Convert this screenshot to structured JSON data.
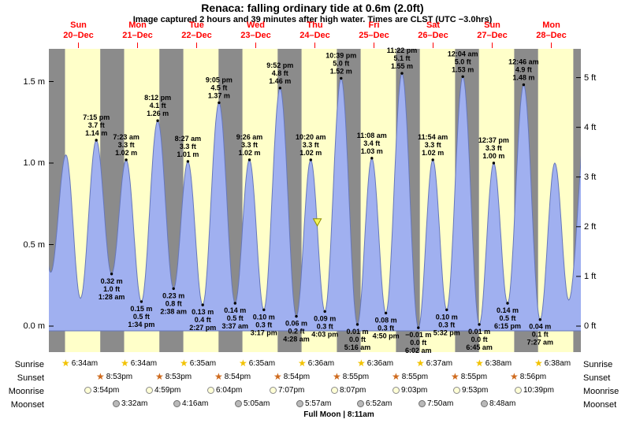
{
  "title": "Renaca: falling  ordinary tide at 0.6m (2.0ft)",
  "subtitle": "Image captured 2 hours and 39 minutes after high water. Times are CLST (UTC −3.0hrs)",
  "colors": {
    "night": "#8b8b8b",
    "day": "#ffffc9",
    "tide_fill": "#a0b0f0",
    "tide_stroke": "#6677bb",
    "date_text": "#ff0000",
    "marker_fill": "#f5f55a",
    "marker_stroke": "#8f8f00",
    "sunrise_star": "#f2c200",
    "sunset_star": "#cf6a1d",
    "moonrise_fill": "#ffffd6",
    "moonrise_border": "#8a8a8a",
    "moonset_fill": "#b9b9b9",
    "moonset_border": "#6e6e6e"
  },
  "chart_data": {
    "type": "area",
    "title": "Tide height at Renaca, Dec 20 - Dec 28",
    "total_hours": 216,
    "days": [
      {
        "name": "Sun",
        "date": "20–Dec"
      },
      {
        "name": "Mon",
        "date": "21–Dec"
      },
      {
        "name": "Tue",
        "date": "22–Dec"
      },
      {
        "name": "Wed",
        "date": "23–Dec"
      },
      {
        "name": "Thu",
        "date": "24–Dec"
      },
      {
        "name": "Fri",
        "date": "25–Dec"
      },
      {
        "name": "Sat",
        "date": "26–Dec"
      },
      {
        "name": "Sun",
        "date": "27–Dec"
      },
      {
        "name": "Mon",
        "date": "28–Dec"
      }
    ],
    "y_axis_left": {
      "unit": "m",
      "ticks": [
        0,
        0.5,
        1,
        1.5
      ]
    },
    "y_axis_right": {
      "unit": "ft",
      "ticks": [
        0,
        1,
        2,
        3,
        4,
        5
      ]
    },
    "ylim_m": [
      -0.17,
      1.7
    ],
    "day_night": [
      {
        "sunrise": 6.57,
        "sunset": 20.88
      },
      {
        "sunrise": 6.57,
        "sunset": 20.88
      },
      {
        "sunrise": 6.58,
        "sunset": 20.9
      },
      {
        "sunrise": 6.58,
        "sunset": 20.9
      },
      {
        "sunrise": 6.6,
        "sunset": 20.92
      },
      {
        "sunrise": 6.6,
        "sunset": 20.92
      },
      {
        "sunrise": 6.62,
        "sunset": 20.92
      },
      {
        "sunrise": 6.63,
        "sunset": 20.93
      },
      {
        "sunrise": 6.63,
        "sunset": 20.93
      }
    ],
    "tide_extremes": [
      {
        "t_hours": -5.33,
        "height_m": 1.1,
        "type": "high",
        "label_lines": null
      },
      {
        "t_hours": 0.75,
        "height_m": 0.33,
        "type": "low",
        "label_lines": null
      },
      {
        "t_hours": 6.92,
        "height_m": 1.05,
        "type": "high",
        "label_lines": null
      },
      {
        "t_hours": 12.83,
        "height_m": 0.17,
        "type": "low",
        "label_lines": null
      },
      {
        "t_hours": 19.25,
        "height_m": 1.14,
        "type": "high",
        "label_lines": [
          "7:15 pm",
          "3.7 ft",
          "1.14 m"
        ]
      },
      {
        "t_hours": 25.47,
        "height_m": 0.32,
        "type": "low",
        "label_lines": [
          "0.32 m",
          "1.0 ft",
          "1:28 am"
        ]
      },
      {
        "t_hours": 31.38,
        "height_m": 1.02,
        "type": "high",
        "label_lines": [
          "7:23 am",
          "3.3 ft",
          "1.02 m"
        ]
      },
      {
        "t_hours": 37.57,
        "height_m": 0.15,
        "type": "low",
        "label_lines": [
          "0.15 m",
          "0.5 ft",
          "1:34 pm"
        ]
      },
      {
        "t_hours": 44.2,
        "height_m": 1.26,
        "type": "high",
        "label_lines": [
          "8:12 pm",
          "4.1 ft",
          "1.26 m"
        ]
      },
      {
        "t_hours": 50.63,
        "height_m": 0.23,
        "type": "low",
        "label_lines": [
          "0.23 m",
          "0.8 ft",
          "2:38 am"
        ]
      },
      {
        "t_hours": 56.45,
        "height_m": 1.01,
        "type": "high",
        "label_lines": [
          "8:27 am",
          "3.3 ft",
          "1.01 m"
        ]
      },
      {
        "t_hours": 62.45,
        "height_m": 0.13,
        "type": "low",
        "label_lines": [
          "0.13 m",
          "0.4 ft",
          "2:27 pm"
        ]
      },
      {
        "t_hours": 69.08,
        "height_m": 1.37,
        "type": "high",
        "label_lines": [
          "9:05 pm",
          "4.5 ft",
          "1.37 m"
        ]
      },
      {
        "t_hours": 75.62,
        "height_m": 0.14,
        "type": "low",
        "label_lines": [
          "0.14 m",
          "0.5 ft",
          "3:37 am"
        ]
      },
      {
        "t_hours": 81.43,
        "height_m": 1.02,
        "type": "high",
        "label_lines": [
          "9:26 am",
          "3.3 ft",
          "1.02 m"
        ]
      },
      {
        "t_hours": 87.28,
        "height_m": 0.1,
        "type": "low",
        "label_lines": [
          "0.10 m",
          "0.3 ft",
          "3:17 pm"
        ]
      },
      {
        "t_hours": 93.87,
        "height_m": 1.46,
        "type": "high",
        "label_lines": [
          "9:52 pm",
          "4.8 ft",
          "1.46 m"
        ]
      },
      {
        "t_hours": 100.47,
        "height_m": 0.06,
        "type": "low",
        "label_lines": [
          "0.06 m",
          "0.2 ft",
          "4:28 am"
        ]
      },
      {
        "t_hours": 106.33,
        "height_m": 1.02,
        "type": "high",
        "label_lines": [
          "10:20 am",
          "3.3 ft",
          "1.02 m"
        ]
      },
      {
        "t_hours": 112.05,
        "height_m": 0.09,
        "type": "low",
        "label_lines": [
          "0.09 m",
          "0.3 ft",
          "4:03 pm"
        ]
      },
      {
        "t_hours": 118.65,
        "height_m": 1.52,
        "type": "high",
        "label_lines": [
          "10:39 pm",
          "5.0 ft",
          "1.52 m"
        ]
      },
      {
        "t_hours": 125.27,
        "height_m": 0.01,
        "type": "low",
        "label_lines": [
          "0.01 m",
          "0.0 ft",
          "5:16 am"
        ]
      },
      {
        "t_hours": 131.13,
        "height_m": 1.03,
        "type": "high",
        "label_lines": [
          "11:08 am",
          "3.4 ft",
          "1.03 m"
        ]
      },
      {
        "t_hours": 136.83,
        "height_m": 0.08,
        "type": "low",
        "label_lines": [
          "0.08 m",
          "0.3 ft",
          "4:50 pm"
        ]
      },
      {
        "t_hours": 143.37,
        "height_m": 1.55,
        "type": "high",
        "label_lines": [
          "11:22 pm",
          "5.1 ft",
          "1.55 m"
        ]
      },
      {
        "t_hours": 150.03,
        "height_m": -0.01,
        "type": "low",
        "label_lines": [
          "−0.01 m",
          "0.0 ft",
          "6:02 am"
        ]
      },
      {
        "t_hours": 155.9,
        "height_m": 1.02,
        "type": "high",
        "label_lines": [
          "11:54 am",
          "3.3 ft",
          "1.02 m"
        ]
      },
      {
        "t_hours": 161.53,
        "height_m": 0.1,
        "type": "low",
        "label_lines": [
          "0.10 m",
          "0.3 ft",
          "5:32 pm"
        ]
      },
      {
        "t_hours": 168.07,
        "height_m": 1.53,
        "type": "high",
        "label_lines": [
          "12:04 am",
          "5.0 ft",
          "1.53 m"
        ]
      },
      {
        "t_hours": 174.75,
        "height_m": 0.01,
        "type": "low",
        "label_lines": [
          "0.01 m",
          "0.0 ft",
          "6:45 am"
        ]
      },
      {
        "t_hours": 180.62,
        "height_m": 1.0,
        "type": "high",
        "label_lines": [
          "12:37 pm",
          "3.3 ft",
          "1.00 m"
        ]
      },
      {
        "t_hours": 186.25,
        "height_m": 0.14,
        "type": "low",
        "label_lines": [
          "0.14 m",
          "0.5 ft",
          "6:15 pm"
        ]
      },
      {
        "t_hours": 192.77,
        "height_m": 1.48,
        "type": "high",
        "label_lines": [
          "12:46 am",
          "4.9 ft",
          "1.48 m"
        ]
      },
      {
        "t_hours": 199.45,
        "height_m": 0.04,
        "type": "low",
        "label_lines": [
          "0.04 m",
          "0.1 ft",
          "7:27 am"
        ]
      },
      {
        "t_hours": 205.42,
        "height_m": 1.0,
        "type": "high",
        "label_lines": null
      },
      {
        "t_hours": 211.08,
        "height_m": 0.16,
        "type": "low",
        "label_lines": null
      },
      {
        "t_hours": 218.5,
        "height_m": 1.3,
        "type": "high",
        "label_lines": null
      }
    ],
    "current_marker": {
      "t_hours": 108.98,
      "height_m": 0.61
    }
  },
  "astro": {
    "rows": [
      {
        "label": "Sunrise",
        "icon": "sunrise",
        "events": [
          {
            "day": 0,
            "hour": 6.57,
            "time": "6:34am"
          },
          {
            "day": 1,
            "hour": 6.57,
            "time": "6:34am"
          },
          {
            "day": 2,
            "hour": 6.58,
            "time": "6:35am"
          },
          {
            "day": 3,
            "hour": 6.58,
            "time": "6:35am"
          },
          {
            "day": 4,
            "hour": 6.6,
            "time": "6:36am"
          },
          {
            "day": 5,
            "hour": 6.6,
            "time": "6:36am"
          },
          {
            "day": 6,
            "hour": 6.62,
            "time": "6:37am"
          },
          {
            "day": 7,
            "hour": 6.63,
            "time": "6:38am"
          },
          {
            "day": 8,
            "hour": 6.63,
            "time": "6:38am"
          }
        ]
      },
      {
        "label": "Sunset",
        "icon": "sunset",
        "events": [
          {
            "day": 0,
            "hour": 20.88,
            "time": "8:53pm"
          },
          {
            "day": 1,
            "hour": 20.88,
            "time": "8:53pm"
          },
          {
            "day": 2,
            "hour": 20.9,
            "time": "8:54pm"
          },
          {
            "day": 3,
            "hour": 20.9,
            "time": "8:54pm"
          },
          {
            "day": 4,
            "hour": 20.92,
            "time": "8:55pm"
          },
          {
            "day": 5,
            "hour": 20.92,
            "time": "8:55pm"
          },
          {
            "day": 6,
            "hour": 20.92,
            "time": "8:55pm"
          },
          {
            "day": 7,
            "hour": 20.93,
            "time": "8:56pm"
          }
        ]
      },
      {
        "label": "Moonrise",
        "icon": "moonrise",
        "events": [
          {
            "day": 0,
            "hour": 15.9,
            "time": "3:54pm"
          },
          {
            "day": 1,
            "hour": 16.98,
            "time": "4:59pm"
          },
          {
            "day": 2,
            "hour": 18.07,
            "time": "6:04pm"
          },
          {
            "day": 3,
            "hour": 19.12,
            "time": "7:07pm"
          },
          {
            "day": 4,
            "hour": 20.12,
            "time": "8:07pm"
          },
          {
            "day": 5,
            "hour": 21.05,
            "time": "9:03pm"
          },
          {
            "day": 6,
            "hour": 21.88,
            "time": "9:53pm"
          },
          {
            "day": 7,
            "hour": 22.65,
            "time": "10:39pm"
          }
        ]
      },
      {
        "label": "Moonset",
        "icon": "moonset",
        "events": [
          {
            "day": 1,
            "hour": 3.53,
            "time": "3:32am"
          },
          {
            "day": 2,
            "hour": 4.27,
            "time": "4:16am"
          },
          {
            "day": 3,
            "hour": 5.08,
            "time": "5:05am"
          },
          {
            "day": 4,
            "hour": 5.95,
            "time": "5:57am"
          },
          {
            "day": 5,
            "hour": 6.87,
            "time": "6:52am"
          },
          {
            "day": 6,
            "hour": 7.83,
            "time": "7:50am"
          },
          {
            "day": 7,
            "hour": 8.8,
            "time": "8:48am"
          }
        ]
      }
    ],
    "full_moon": "Full Moon | 8:11am"
  }
}
